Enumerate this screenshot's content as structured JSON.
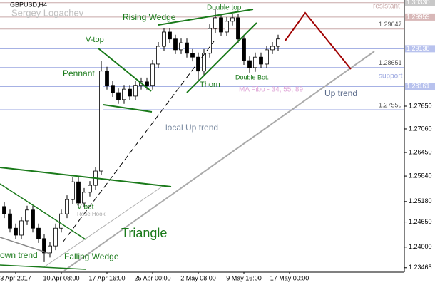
{
  "chart_data": {
    "type": "candlestick",
    "title": "GBPUSD,H4",
    "subtitle": "Sergey Logachev",
    "categories": [
      null,
      null,
      "3 Apr 2017",
      null,
      null,
      null,
      null,
      null,
      null,
      null,
      "10 Apr 08:00",
      null,
      null,
      null,
      null,
      null,
      null,
      null,
      "17 Apr 16:00",
      null,
      null,
      null,
      null,
      null,
      null,
      null,
      "25 Apr 00:00",
      null,
      null,
      null,
      null,
      null,
      null,
      null,
      "2 May 08:00",
      null,
      null,
      null,
      null,
      null,
      null,
      null,
      "9 May 16:00",
      null,
      null,
      null,
      null,
      null,
      null,
      null,
      "17 May 00:00",
      null
    ],
    "open": [
      1.2505,
      1.2486,
      1.2449,
      1.2431,
      1.2468,
      1.2496,
      1.2449,
      1.2422,
      1.2385,
      1.2403,
      1.2449,
      1.2486,
      1.2523,
      1.2569,
      1.2514,
      1.2542,
      1.256,
      1.2597,
      1.2856,
      1.2819,
      1.28,
      1.2782,
      1.2809,
      1.2791,
      1.2819,
      1.2828,
      1.2819,
      1.2874,
      1.292,
      1.2957,
      1.2939,
      1.2911,
      1.2929,
      1.2902,
      1.2892,
      1.2856,
      1.2902,
      1.2966,
      1.2994,
      1.2957,
      1.2985,
      1.2994,
      1.2939,
      1.2883,
      1.2865,
      1.2892,
      1.2874,
      1.2911,
      1.292,
      null,
      null,
      null
    ],
    "high": [
      1.2516,
      1.2497,
      1.2461,
      1.2479,
      1.2507,
      1.2507,
      1.2461,
      1.2433,
      1.2414,
      1.2461,
      1.2497,
      1.2534,
      1.2581,
      1.2581,
      1.2553,
      1.2571,
      1.2608,
      1.2883,
      1.2867,
      1.283,
      1.2811,
      1.282,
      1.282,
      1.283,
      1.2839,
      1.2839,
      1.2885,
      1.2931,
      1.2968,
      1.2968,
      1.295,
      1.294,
      1.294,
      1.2913,
      1.2904,
      1.2913,
      1.2977,
      1.3018,
      1.3005,
      1.2996,
      1.3005,
      1.3005,
      1.295,
      1.2894,
      1.2904,
      1.2904,
      1.2922,
      1.2931,
      1.295,
      null,
      null,
      null
    ],
    "low": [
      1.2475,
      1.2438,
      1.242,
      1.242,
      1.2457,
      1.2438,
      1.2411,
      1.2361,
      1.2373,
      1.2392,
      1.2438,
      1.2475,
      1.2512,
      1.2503,
      1.2503,
      1.2531,
      1.2549,
      1.2586,
      1.2808,
      1.2789,
      1.2771,
      1.2771,
      1.278,
      1.278,
      1.2808,
      1.2808,
      1.2808,
      1.2863,
      1.2909,
      1.2928,
      1.29,
      1.29,
      1.2891,
      1.2881,
      1.2833,
      1.2844,
      1.2891,
      1.2955,
      1.2946,
      1.2946,
      1.2974,
      1.2928,
      1.2872,
      1.2852,
      1.2854,
      1.2863,
      1.2863,
      1.29,
      1.2909,
      null,
      null,
      null
    ],
    "close": [
      1.2486,
      1.2449,
      1.2431,
      1.2468,
      1.2496,
      1.2449,
      1.2422,
      1.2385,
      1.2403,
      1.2449,
      1.2486,
      1.2523,
      1.2569,
      1.2514,
      1.2542,
      1.256,
      1.2597,
      1.2856,
      1.2819,
      1.28,
      1.2782,
      1.2809,
      1.2791,
      1.2819,
      1.2828,
      1.2819,
      1.2874,
      1.292,
      1.2957,
      1.2939,
      1.2911,
      1.2929,
      1.2902,
      1.2892,
      1.2856,
      1.2902,
      1.2966,
      1.2994,
      1.2957,
      1.2985,
      1.2994,
      1.2939,
      1.2883,
      1.2865,
      1.2892,
      1.2874,
      1.2911,
      1.292,
      1.2939,
      null,
      null,
      null
    ],
    "up_color": "#ffffff",
    "down_color": "#000000",
    "edge_color": "#000000",
    "ylim": [
      1.2335,
      1.304
    ],
    "yticks": [
      {
        "value": 1.23465,
        "label": "1.23465"
      },
      {
        "value": 1.24,
        "label": "1.24000"
      },
      {
        "value": 1.2465,
        "label": "1.24650"
      },
      {
        "value": 1.2518,
        "label": "1.25180"
      },
      {
        "value": 1.2584,
        "label": "1.25840"
      },
      {
        "value": 1.2645,
        "label": "1.26450"
      },
      {
        "value": 1.2706,
        "label": "1.27060"
      },
      {
        "value": 1.2765,
        "label": "1.27650"
      }
    ],
    "levels": [
      {
        "value": 1.3033,
        "label": "1.30330",
        "color": "#c8a8a8",
        "box": "#c8c8c8"
      },
      {
        "value": 1.29959,
        "label": "1.29959",
        "color": "#c8a8a8",
        "box": "#d8b8b8"
      },
      {
        "value": 1.29647,
        "label": "1.29647",
        "color": "#c8a8a8",
        "box": null
      },
      {
        "value": 1.29138,
        "label": "1.29138",
        "color": "#9aa6e0",
        "box": "#b8c2ee"
      },
      {
        "value": 1.28651,
        "label": "1.28651",
        "color": "#9aa6e0",
        "box": null
      },
      {
        "value": 1.28161,
        "label": "1.28161",
        "color": "#9aa6e0",
        "box": "#b8c2ee"
      },
      {
        "value": 1.27559,
        "label": "1.27559",
        "color": "#9aa6e0",
        "box": null
      }
    ],
    "annotations": [
      "Rising Wedge",
      "Double top",
      "V-top",
      "Pennant",
      "Thorn",
      "Double Bot.",
      "MA Fibo - 34; 55; 89",
      "Up trend",
      "local  Up trend",
      "V-bot",
      "Rose Hook",
      "Triangle",
      "Falling Wedge",
      "own trend",
      "resistant",
      "support"
    ]
  }
}
